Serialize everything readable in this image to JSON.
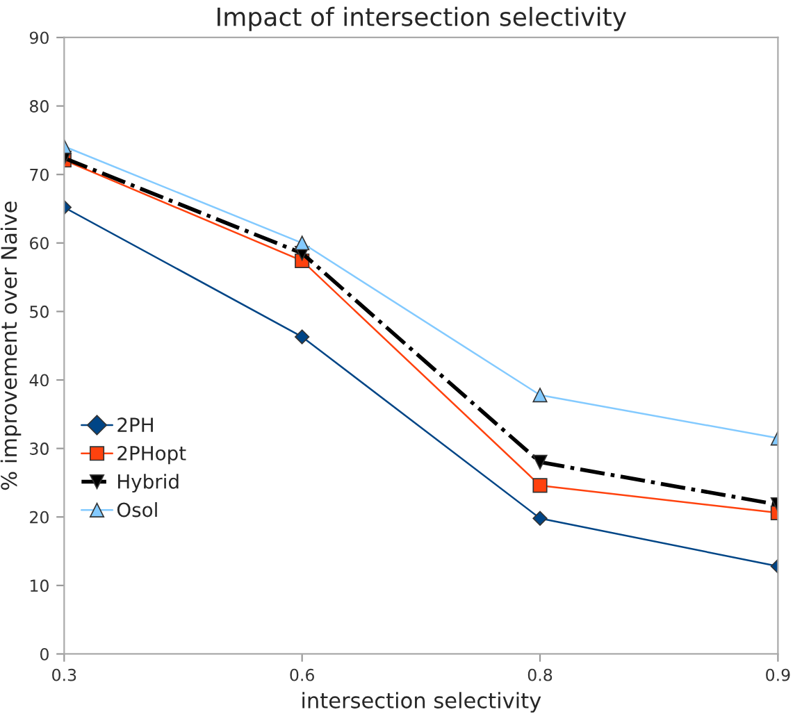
{
  "chart_data": {
    "type": "line",
    "title": "Impact of intersection selectivity",
    "xlabel": "intersection selectivity",
    "ylabel": "% improvement over Naive",
    "categories": [
      "0.3",
      "0.6",
      "0.8",
      "0.9"
    ],
    "series": [
      {
        "name": "2PH",
        "color": "#004586",
        "values": [
          65.2,
          46.3,
          19.8,
          12.8
        ],
        "marker": "diamond",
        "line_style": "solid"
      },
      {
        "name": "2PHopt",
        "color": "#ff420e",
        "values": [
          72.1,
          57.4,
          24.6,
          20.6
        ],
        "marker": "square",
        "line_style": "solid"
      },
      {
        "name": "Hybrid",
        "color": "#000000",
        "values": [
          72.4,
          58.5,
          28.0,
          21.8
        ],
        "marker": "triangle_down",
        "line_style": "dashdot"
      },
      {
        "name": "Osol",
        "color": "#83caff",
        "values": [
          74.1,
          60.0,
          37.8,
          31.5
        ],
        "marker": "triangle",
        "line_style": "solid"
      }
    ],
    "ylim": [
      0,
      90
    ],
    "yticks": [
      0,
      10,
      20,
      30,
      40,
      50,
      60,
      70,
      80,
      90
    ],
    "grid": false,
    "legend": "center left"
  }
}
